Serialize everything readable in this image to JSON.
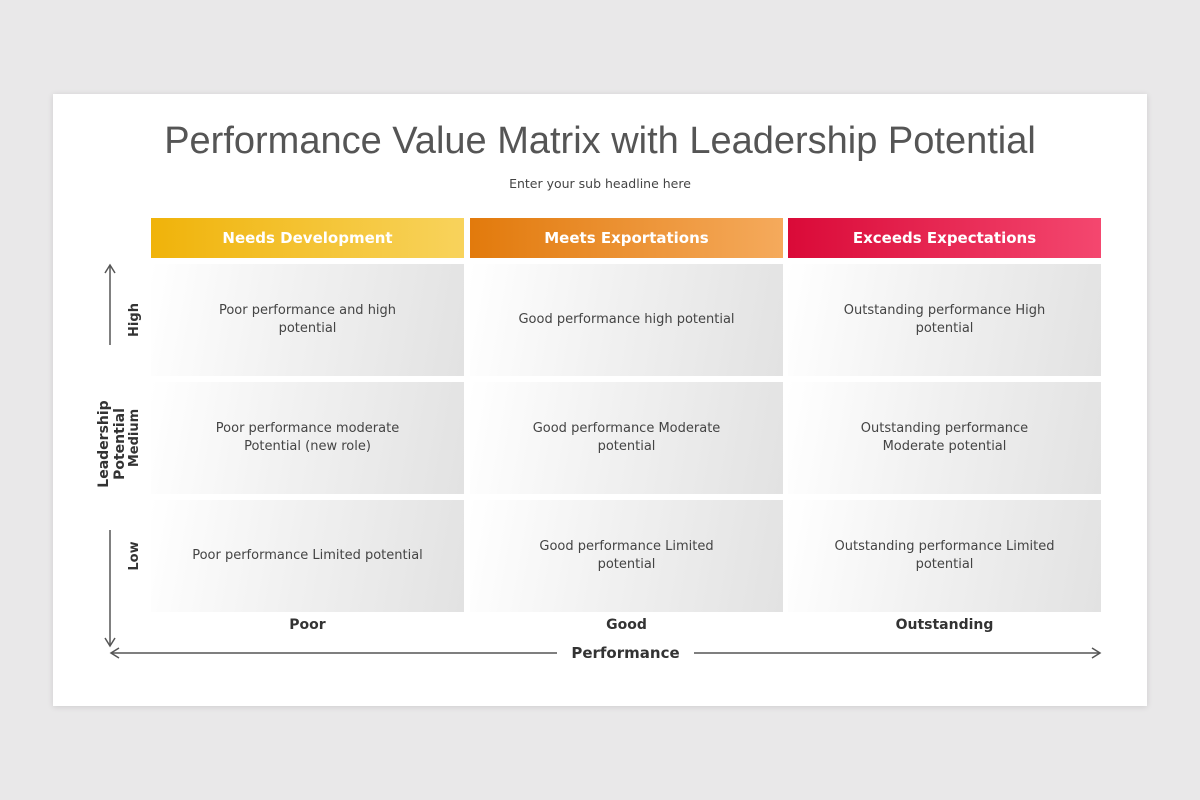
{
  "header": {
    "title": "Performance Value Matrix with Leadership Potential",
    "subtitle": "Enter your sub headline here"
  },
  "matrix": {
    "columns": [
      "Needs Development",
      "Meets Exportations",
      "Exceeds Expectations"
    ],
    "rows": [
      {
        "label": "High",
        "cells": [
          "Poor performance and high potential",
          "Good performance high potential",
          "Outstanding performance High potential"
        ]
      },
      {
        "label": "Medium",
        "cells": [
          "Poor performance moderate Potential (new role)",
          "Good performance Moderate potential",
          "Outstanding performance Moderate potential"
        ]
      },
      {
        "label": "Low",
        "cells": [
          "Poor performance Limited potential",
          "Good performance Limited potential",
          "Outstanding performance Limited potential"
        ]
      }
    ],
    "x_labels": [
      "Poor",
      "Good",
      "Outstanding"
    ],
    "x_axis_title": "Performance",
    "y_axis_title": "Leadership Potential"
  }
}
